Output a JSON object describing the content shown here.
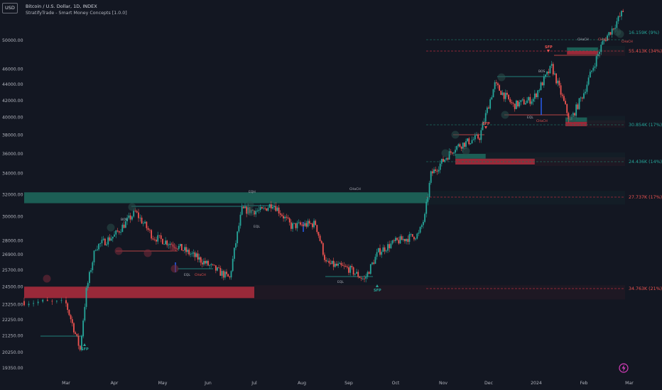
{
  "header": {
    "currency_button": "USD",
    "symbol_title": "Bitcoin / U.S. Dollar, 1D, INDEX",
    "indicator_title": "StratifyTrade - Smart Money Concepts [1.0.0]"
  },
  "colors": {
    "background": "#131722",
    "up": "#26a69a",
    "down": "#ef5350",
    "zone_green": "#1e6b5e",
    "zone_red": "#b22d3d",
    "bos_blue": "#2962ff",
    "text": "#b2b5be",
    "brand": "#d63dbb"
  },
  "chart_data": {
    "type": "candlestick",
    "x_ticks": [
      "Mar",
      "Apr",
      "May",
      "Jun",
      "Jul",
      "Aug",
      "Sep",
      "Oct",
      "Nov",
      "Dec",
      "2024",
      "Feb",
      "Mar"
    ],
    "y_ticks": [
      19350,
      20250,
      21250,
      22250,
      23250,
      24500,
      25700,
      26900,
      28000,
      30000,
      32000,
      34000,
      36000,
      38000,
      40000,
      42000,
      44000,
      46000,
      50000
    ],
    "y_scale": "log",
    "ylim": [
      19000,
      55000
    ],
    "close_path_approx": [
      [
        "2023-02-20",
        23500
      ],
      [
        "2023-03-01",
        23300
      ],
      [
        "2023-03-10",
        20400
      ],
      [
        "2023-03-14",
        24200
      ],
      [
        "2023-03-20",
        27500
      ],
      [
        "2023-04-01",
        28400
      ],
      [
        "2023-04-14",
        30400
      ],
      [
        "2023-04-25",
        28300
      ],
      [
        "2023-05-10",
        27600
      ],
      [
        "2023-05-25",
        26600
      ],
      [
        "2023-06-05",
        25800
      ],
      [
        "2023-06-15",
        25100
      ],
      [
        "2023-06-23",
        30600
      ],
      [
        "2023-07-06",
        30500
      ],
      [
        "2023-07-13",
        31200
      ],
      [
        "2023-07-25",
        29200
      ],
      [
        "2023-08-10",
        29400
      ],
      [
        "2023-08-17",
        26200
      ],
      [
        "2023-09-01",
        25800
      ],
      [
        "2023-09-11",
        25000
      ],
      [
        "2023-09-20",
        27100
      ],
      [
        "2023-10-01",
        27900
      ],
      [
        "2023-10-16",
        28500
      ],
      [
        "2023-10-20",
        30000
      ],
      [
        "2023-10-24",
        33900
      ],
      [
        "2023-11-09",
        36700
      ],
      [
        "2023-11-25",
        37800
      ],
      [
        "2023-12-05",
        44000
      ],
      [
        "2023-12-17",
        41400
      ],
      [
        "2023-12-30",
        42200
      ],
      [
        "2024-01-11",
        46300
      ],
      [
        "2024-01-23",
        39500
      ],
      [
        "2024-02-01",
        43000
      ],
      [
        "2024-02-13",
        49700
      ],
      [
        "2024-02-20",
        52000
      ],
      [
        "2024-02-26",
        54400
      ]
    ],
    "zones": [
      {
        "type": "supply",
        "from": "2023-02-20",
        "to": "2023-10-22",
        "low": 31200,
        "high": 32200,
        "color": "green"
      },
      {
        "type": "demand",
        "from": "2023-02-20",
        "to": "2023-07-01",
        "low": 23700,
        "high": 24500,
        "color": "red"
      },
      {
        "type": "demand",
        "from": "2023-11-09",
        "to": "2023-12-31",
        "low": 34900,
        "high": 35500,
        "color": "red"
      },
      {
        "type": "demand",
        "from": "2023-11-09",
        "to": "2023-11-29",
        "low": 35500,
        "high": 36000,
        "color": "green"
      },
      {
        "type": "demand",
        "from": "2024-01-20",
        "to": "2024-02-03",
        "low": 39000,
        "high": 39500,
        "color": "red"
      },
      {
        "type": "demand",
        "from": "2024-01-20",
        "to": "2024-02-03",
        "low": 39500,
        "high": 40000,
        "color": "green"
      },
      {
        "type": "demand",
        "from": "2024-01-21",
        "to": "2024-02-10",
        "low": 48000,
        "high": 48500,
        "color": "red"
      },
      {
        "type": "demand",
        "from": "2024-01-21",
        "to": "2024-02-10",
        "low": 48500,
        "high": 49000,
        "color": "green"
      }
    ],
    "right_labels": [
      {
        "text": "16.159K (9%)",
        "color": "green"
      },
      {
        "text": "55.413K (34%)",
        "color": "red"
      },
      {
        "text": "30.854K (17%)",
        "color": "green"
      },
      {
        "text": "24.436K (14%)",
        "color": "green"
      },
      {
        "text": "27.737K (17%)",
        "color": "red"
      },
      {
        "text": "34.763K (21%)",
        "color": "red"
      }
    ],
    "markers": [
      {
        "text": "SFP",
        "color": "green"
      },
      {
        "text": "SFP",
        "color": "green"
      },
      {
        "text": "SFP",
        "color": "red"
      },
      {
        "text": "SFP",
        "color": "red"
      }
    ],
    "structure_labels": [
      "CHoCH",
      "BOS",
      "EQL",
      "EQL",
      "EQL",
      "CHoCH",
      "CHoCH",
      "BOS",
      "CHoCH",
      "EQL",
      "CHoCH",
      "EQH",
      "CHoCH"
    ]
  }
}
